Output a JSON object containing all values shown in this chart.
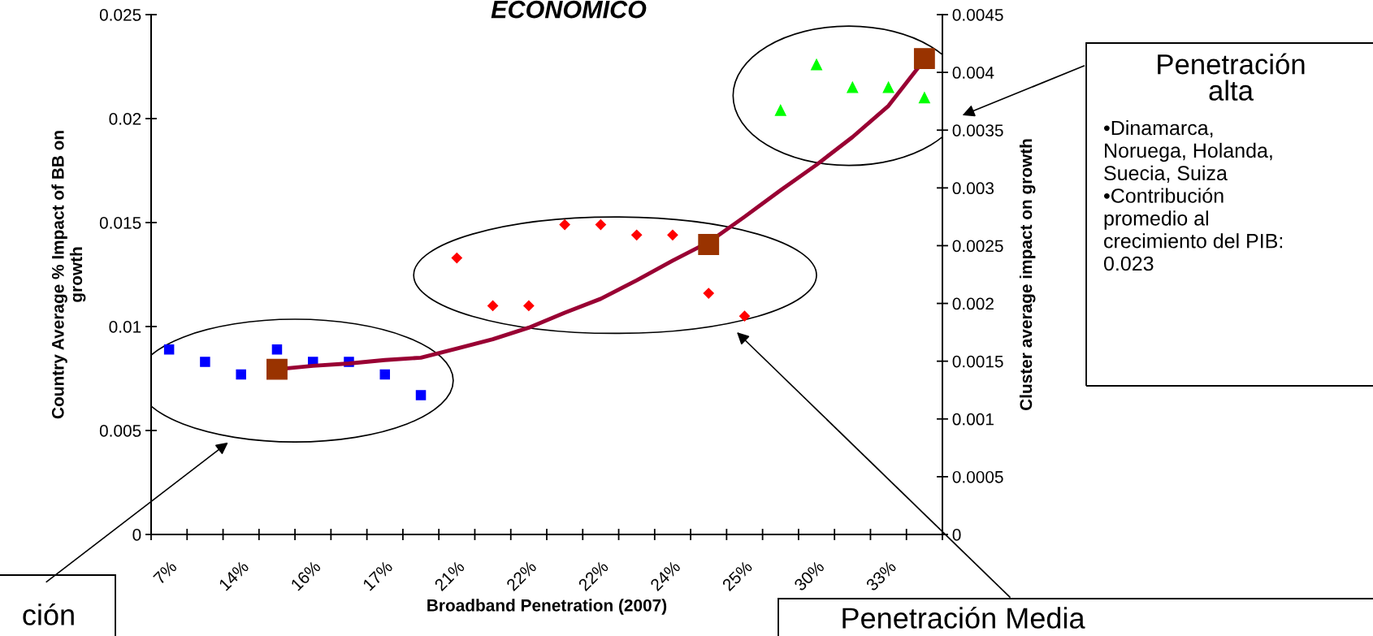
{
  "chart_data": {
    "type": "scatter",
    "title": "ECONOMICO",
    "xlabel": "Broadband Penetration (2007)",
    "ylabel": "Country Average % Impact of BB on\ngrowth",
    "y2label": "Cluster average impact on growth",
    "categories": [
      "7%",
      null,
      "14%",
      null,
      "16%",
      null,
      "17%",
      null,
      "21%",
      null,
      "22%",
      null,
      "22%",
      null,
      "24%",
      null,
      "25%",
      null,
      "30%",
      null,
      "33%",
      null
    ],
    "series": [
      {
        "color": "#0000ff",
        "marker": "square",
        "values": [
          0.0089,
          0.0083,
          0.0077,
          0.0089,
          0.0083,
          0.0083,
          0.0077,
          0.0067,
          null,
          null,
          null,
          null,
          null,
          null,
          null,
          null,
          null,
          null,
          null,
          null,
          null,
          null
        ]
      },
      {
        "color": "#ff0000",
        "marker": "diamond",
        "values": [
          null,
          null,
          null,
          null,
          null,
          null,
          null,
          null,
          0.0133,
          0.011,
          0.011,
          0.0149,
          0.0149,
          0.0144,
          0.0144,
          0.0116,
          0.0105,
          null,
          null,
          null,
          null,
          null
        ]
      },
      {
        "color": "#00ff00",
        "marker": "triangle",
        "values": [
          null,
          null,
          null,
          null,
          null,
          null,
          null,
          null,
          null,
          null,
          null,
          null,
          null,
          null,
          null,
          null,
          null,
          0.0204,
          0.0226,
          0.0215,
          0.0215,
          0.021
        ]
      },
      {
        "type": "line",
        "axis": "y2",
        "color": "#990033",
        "marker": "none",
        "values": [
          null,
          null,
          null,
          0.00143,
          0.00146,
          0.00148,
          0.00151,
          0.00153,
          0.00161,
          0.00169,
          0.00179,
          0.00192,
          0.00204,
          0.0022,
          0.00237,
          0.00253,
          0.00275,
          0.00298,
          0.0032,
          0.00344,
          0.00371,
          0.00411
        ]
      },
      {
        "type": "scatter",
        "axis": "y2",
        "color": "#993300",
        "marker": "square",
        "values": [
          null,
          null,
          null,
          0.00143,
          null,
          null,
          null,
          null,
          null,
          null,
          null,
          null,
          null,
          null,
          null,
          0.00251,
          null,
          null,
          null,
          null,
          null,
          0.00412
        ]
      }
    ],
    "ylim": [
      0,
      0.025
    ],
    "yticks": [
      0,
      0.005,
      0.01,
      0.015,
      0.02,
      0.025
    ],
    "y2lim": [
      0,
      0.0045
    ],
    "y2ticks": [
      0,
      0.0005,
      0.001,
      0.0015,
      0.002,
      0.0025,
      0.003,
      0.0035,
      0.004,
      0.0045
    ],
    "grid": false,
    "legend": false,
    "annotations": [
      "ción",
      "Penetración Media",
      "Penetración\nalta",
      "•Dinamarca,\nNoruega, Holanda,\nSuecia, Suiza\n•Contribución\npromedio al\ncrecimiento del PIB:\n0.023"
    ]
  }
}
